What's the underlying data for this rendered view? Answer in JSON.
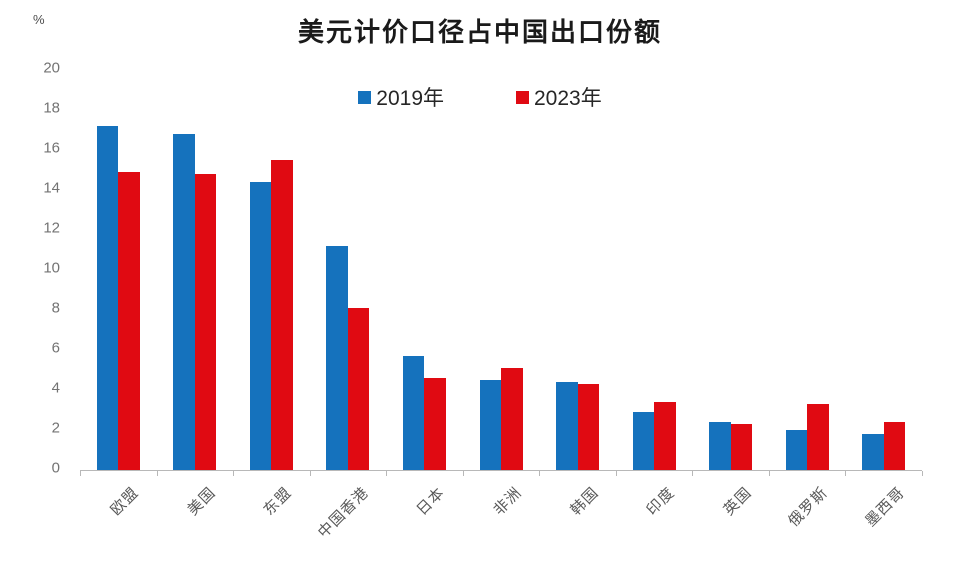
{
  "chart_data": {
    "type": "bar",
    "title": "美元计价口径占中国出口份额",
    "unit_label": "%",
    "categories": [
      "欧盟",
      "美国",
      "东盟",
      "中国香港",
      "日本",
      "非洲",
      "韩国",
      "印度",
      "英国",
      "俄罗斯",
      "墨西哥"
    ],
    "series": [
      {
        "name": "2019年",
        "color": "#1572bd",
        "values": [
          17.2,
          16.8,
          14.4,
          11.2,
          5.7,
          4.5,
          4.4,
          2.9,
          2.4,
          2.0,
          1.8
        ]
      },
      {
        "name": "2023年",
        "color": "#e00a12",
        "values": [
          14.9,
          14.8,
          15.5,
          8.1,
          4.6,
          5.1,
          4.3,
          3.4,
          2.3,
          3.3,
          2.4
        ]
      }
    ],
    "ylim": [
      0,
      20
    ],
    "ytick_step": 2,
    "grid": false,
    "legend_position": "top-center",
    "axis_color": "#b8b8b8",
    "tick_label_color": "#737373",
    "category_label_color": "#595959"
  }
}
